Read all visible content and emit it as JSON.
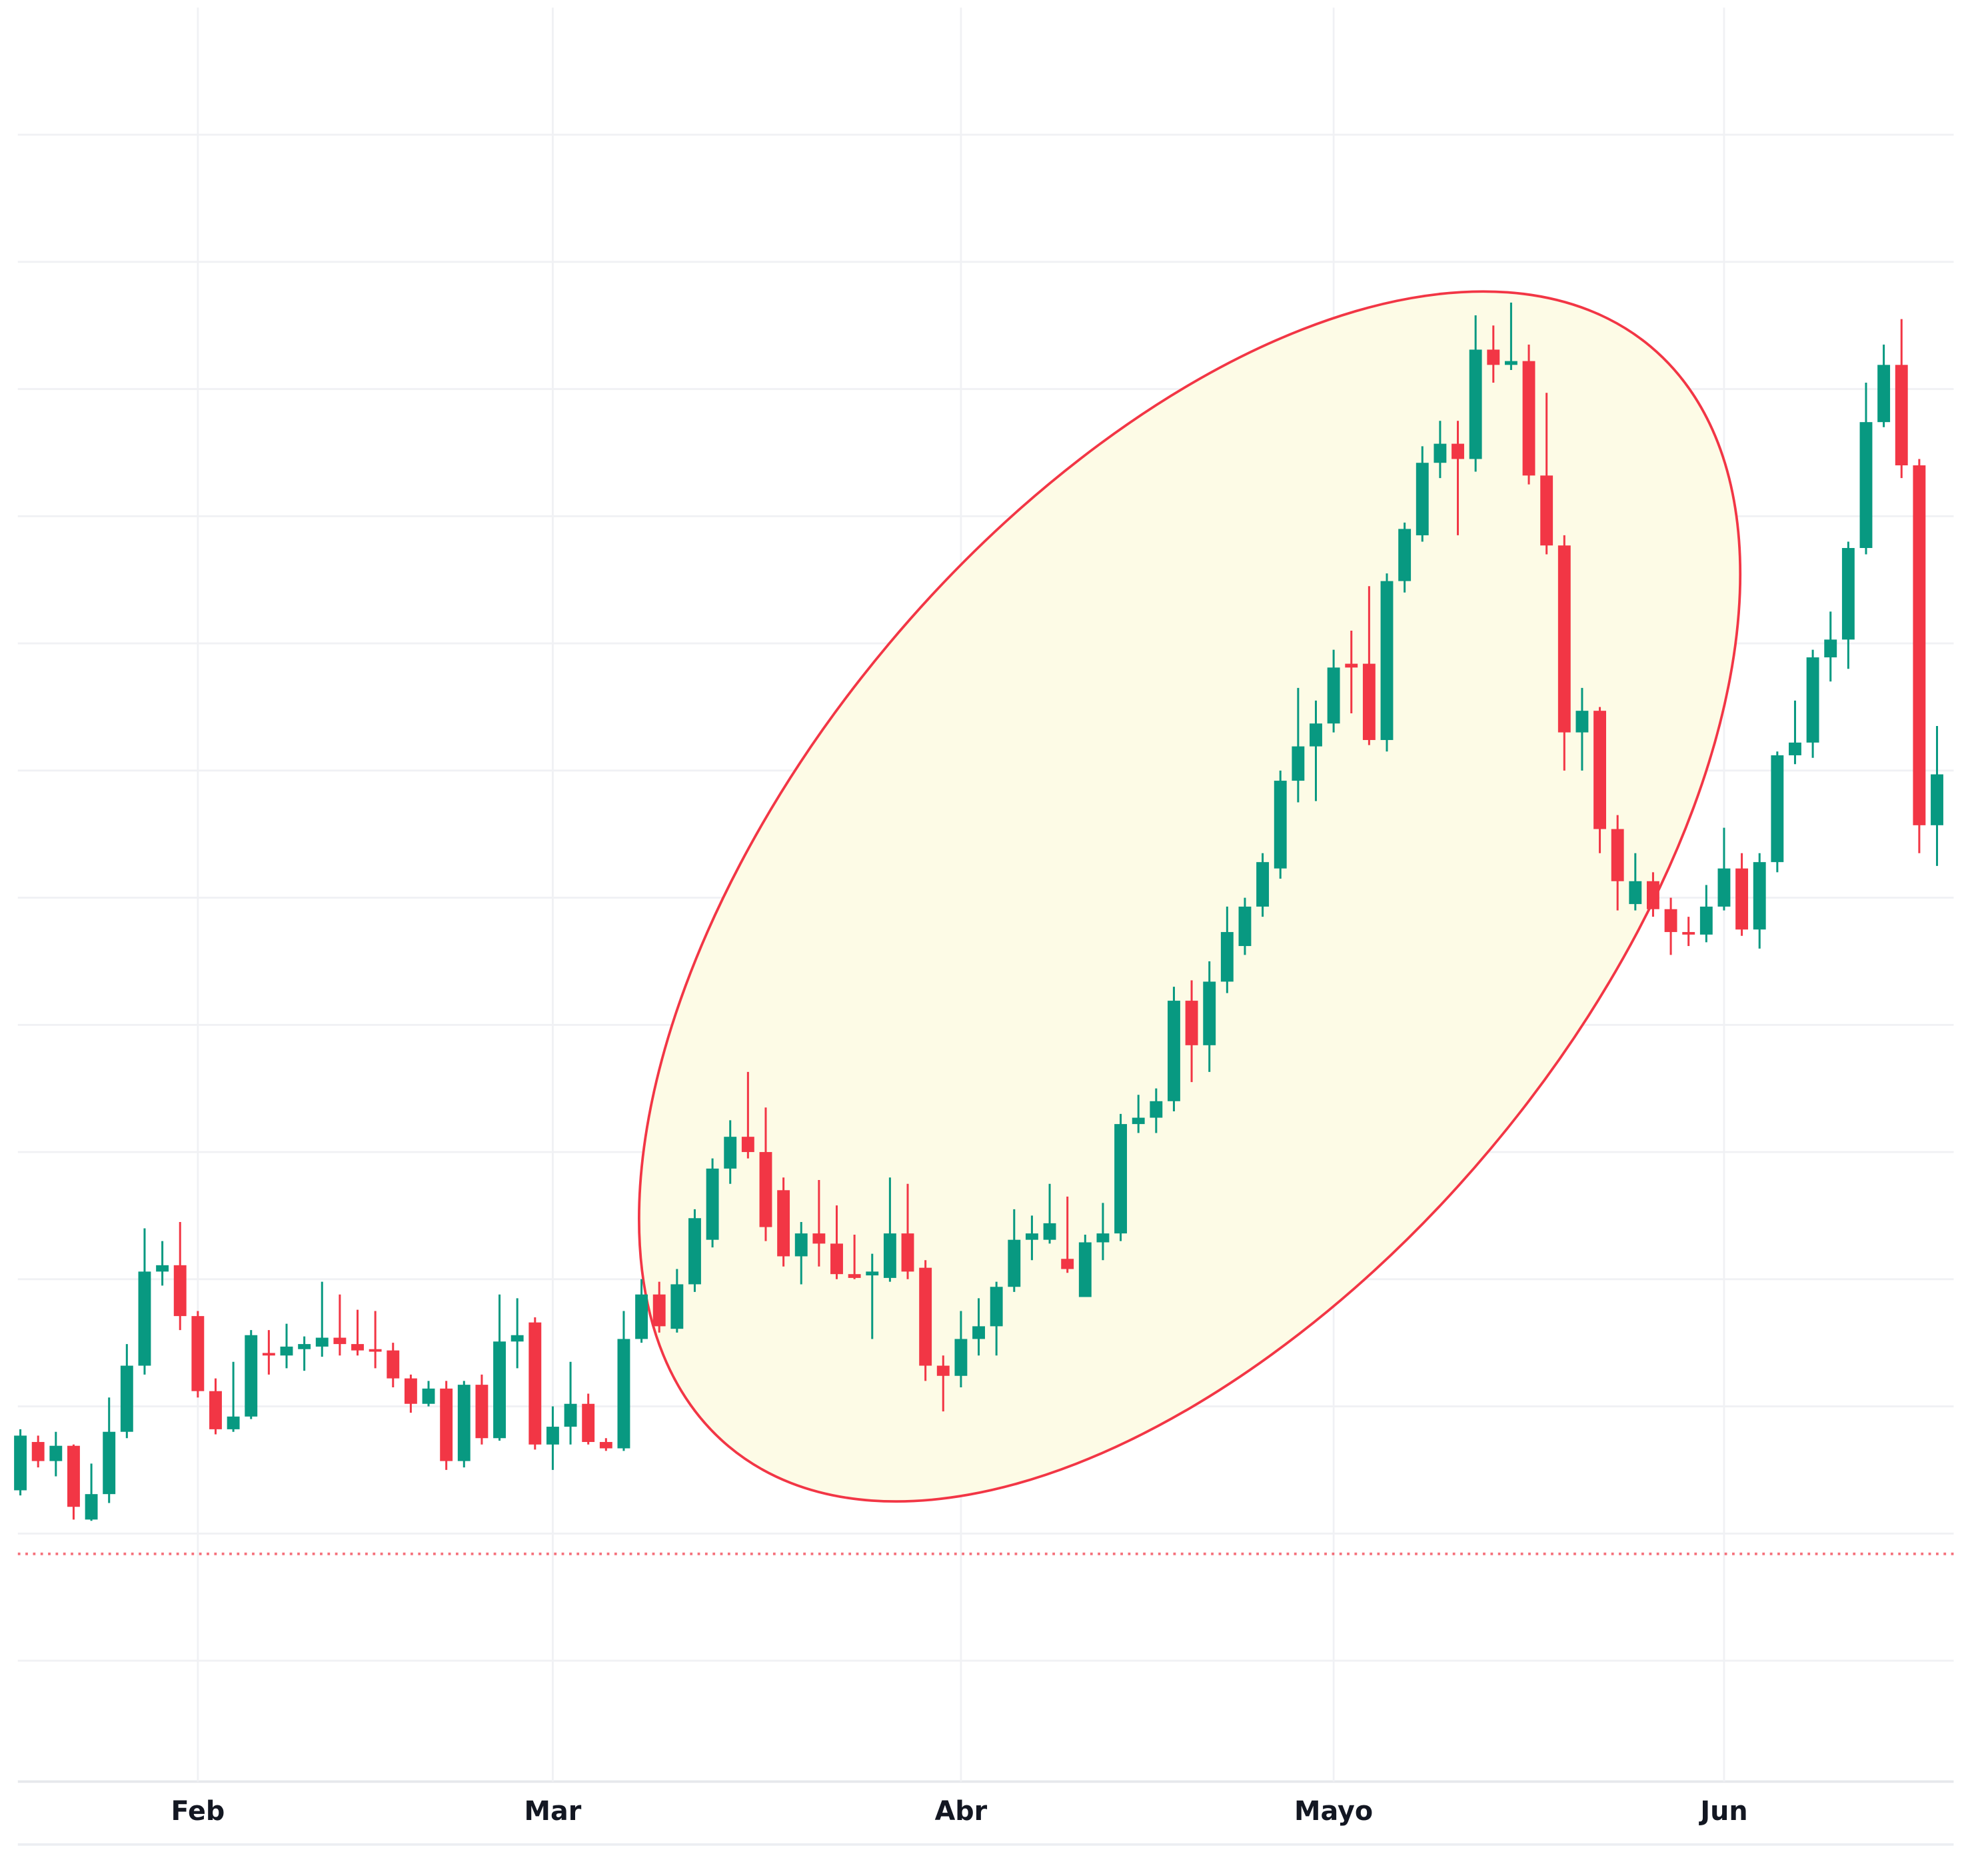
{
  "chart_data": {
    "type": "candlestick",
    "categories": [
      null,
      null,
      null,
      null,
      null,
      null,
      null,
      null,
      null,
      null,
      "Feb",
      null,
      null,
      null,
      null,
      null,
      null,
      null,
      null,
      null,
      null,
      null,
      null,
      null,
      null,
      null,
      null,
      null,
      null,
      null,
      "Mar",
      null,
      null,
      null,
      null,
      null,
      null,
      null,
      null,
      null,
      null,
      null,
      null,
      null,
      null,
      null,
      null,
      null,
      null,
      null,
      null,
      null,
      null,
      "Abr",
      null,
      null,
      null,
      null,
      null,
      null,
      null,
      null,
      null,
      null,
      null,
      null,
      null,
      null,
      null,
      null,
      null,
      null,
      null,
      null,
      "Mayo",
      null,
      null,
      null,
      null,
      null,
      null,
      null,
      null,
      null,
      null,
      null,
      null,
      null,
      null,
      null,
      null,
      null,
      null,
      null,
      null,
      null,
      "Jun",
      null,
      null,
      null,
      null,
      null,
      null,
      null,
      null,
      null,
      null,
      null,
      null
    ],
    "open": [
      23.4,
      27.2,
      25.7,
      26.9,
      21.1,
      23.1,
      28.0,
      33.2,
      40.6,
      41.1,
      37.1,
      31.2,
      28.2,
      29.2,
      34.2,
      34.0,
      34.5,
      34.7,
      35.4,
      34.9,
      34.5,
      34.4,
      32.2,
      30.2,
      31.4,
      25.7,
      31.7,
      27.5,
      35.1,
      36.6,
      27.0,
      28.4,
      30.2,
      27.2,
      26.7,
      35.3,
      38.8,
      36.1,
      39.6,
      43.1,
      48.7,
      51.2,
      50.0,
      47.0,
      41.8,
      43.6,
      42.8,
      40.4,
      40.3,
      40.1,
      43.6,
      40.9,
      33.2,
      32.4,
      35.3,
      36.3,
      39.4,
      43.1,
      43.1,
      41.6,
      38.6,
      42.9,
      43.6,
      52.2,
      52.7,
      54.0,
      61.9,
      58.4,
      63.4,
      66.2,
      69.3,
      72.3,
      79.2,
      81.9,
      83.7,
      88.4,
      88.4,
      82.4,
      94.9,
      98.5,
      104.2,
      105.7,
      104.5,
      113.1,
      111.9,
      112.2,
      103.2,
      97.7,
      83.0,
      84.7,
      75.4,
      69.5,
      71.3,
      69.1,
      67.3,
      67.1,
      69.3,
      72.3,
      67.5,
      72.8,
      81.2,
      82.2,
      88.9,
      90.3,
      97.5,
      107.4,
      111.9,
      104.0,
      75.7
    ],
    "high": [
      28.2,
      27.7,
      28.0,
      27.0,
      25.5,
      30.7,
      34.9,
      44.0,
      43.0,
      44.5,
      37.5,
      32.2,
      33.5,
      36.0,
      36.0,
      36.5,
      35.5,
      39.8,
      38.8,
      37.6,
      37.5,
      35.0,
      32.5,
      32.0,
      32.0,
      32.0,
      32.5,
      38.8,
      38.5,
      37.0,
      30.0,
      33.5,
      31.0,
      27.5,
      37.5,
      40.0,
      39.8,
      40.8,
      45.5,
      49.5,
      52.5,
      56.3,
      53.5,
      48.0,
      44.5,
      47.8,
      45.8,
      43.5,
      42.0,
      48.0,
      47.5,
      41.5,
      34.0,
      37.5,
      38.5,
      39.8,
      45.5,
      45.0,
      47.5,
      46.5,
      43.5,
      46.0,
      53.0,
      54.5,
      55.0,
      63.0,
      63.5,
      65.0,
      69.3,
      70.0,
      73.5,
      80.0,
      86.5,
      85.5,
      89.5,
      91.0,
      94.5,
      95.5,
      99.5,
      105.5,
      107.5,
      107.5,
      115.8,
      115.0,
      116.8,
      113.5,
      109.7,
      98.5,
      86.5,
      85.0,
      76.5,
      73.5,
      72.0,
      70.0,
      68.5,
      71.0,
      75.5,
      73.5,
      73.5,
      81.5,
      85.5,
      89.5,
      92.5,
      98.0,
      110.5,
      113.5,
      115.5,
      104.5,
      83.5
    ],
    "low": [
      23.0,
      25.2,
      24.5,
      21.1,
      21.0,
      22.4,
      27.5,
      32.5,
      39.5,
      36.0,
      30.7,
      27.8,
      28.0,
      29.0,
      32.5,
      33.0,
      32.8,
      33.9,
      34.0,
      34.0,
      33.0,
      31.5,
      29.5,
      30.0,
      25.0,
      25.2,
      27.0,
      27.3,
      33.0,
      26.6,
      25.0,
      27.0,
      27.0,
      26.5,
      26.5,
      35.0,
      35.8,
      35.8,
      39.0,
      42.5,
      47.5,
      49.5,
      43.0,
      41.0,
      39.6,
      41.0,
      40.0,
      40.0,
      35.3,
      39.8,
      40.0,
      32.0,
      29.6,
      31.5,
      34.0,
      34.0,
      39.0,
      41.5,
      42.8,
      40.5,
      38.6,
      41.5,
      43.0,
      51.5,
      51.5,
      53.2,
      55.5,
      56.3,
      62.5,
      65.5,
      68.5,
      71.5,
      77.5,
      77.6,
      83.0,
      84.5,
      82.0,
      81.5,
      94.0,
      98.0,
      103.0,
      98.5,
      103.5,
      110.5,
      111.5,
      102.5,
      97.0,
      80.0,
      80.0,
      73.5,
      69.0,
      69.0,
      68.5,
      65.5,
      66.2,
      66.5,
      69.0,
      67.0,
      66.0,
      72.0,
      80.5,
      81.0,
      87.0,
      88.0,
      97.0,
      107.0,
      103.0,
      73.5,
      72.5
    ],
    "close": [
      27.7,
      25.7,
      26.9,
      22.1,
      23.1,
      28.0,
      33.2,
      40.6,
      41.1,
      37.1,
      31.2,
      28.2,
      29.2,
      35.6,
      34.0,
      34.7,
      34.9,
      35.4,
      34.9,
      34.4,
      34.3,
      32.2,
      30.2,
      31.4,
      25.7,
      31.7,
      27.5,
      35.1,
      35.6,
      27.0,
      28.4,
      30.2,
      27.2,
      26.7,
      35.3,
      38.8,
      36.3,
      39.6,
      44.8,
      48.7,
      51.2,
      50.0,
      44.1,
      41.8,
      43.6,
      42.8,
      40.4,
      40.1,
      40.6,
      43.6,
      40.6,
      33.2,
      32.4,
      35.3,
      36.3,
      39.4,
      43.1,
      43.6,
      44.4,
      40.8,
      42.9,
      43.6,
      52.2,
      52.7,
      54.0,
      61.9,
      58.4,
      63.4,
      67.3,
      69.3,
      72.8,
      79.2,
      81.9,
      83.7,
      88.1,
      88.1,
      82.4,
      94.9,
      99.0,
      104.2,
      105.7,
      104.5,
      113.1,
      111.9,
      112.2,
      103.2,
      97.7,
      83.0,
      84.7,
      75.4,
      71.3,
      71.3,
      69.1,
      67.3,
      67.1,
      69.3,
      72.3,
      67.5,
      72.8,
      81.2,
      82.2,
      88.9,
      90.3,
      97.5,
      107.4,
      111.9,
      104.0,
      75.7,
      79.7
    ],
    "up_color": "#089981",
    "down_color": "#f23645",
    "ylim": [
      0,
      140
    ],
    "ygrid": [
      10,
      20,
      30,
      40,
      50,
      60,
      70,
      80,
      90,
      100,
      110,
      120,
      130
    ],
    "ref_line": {
      "value": 18.4,
      "color": "#f23645"
    }
  }
}
